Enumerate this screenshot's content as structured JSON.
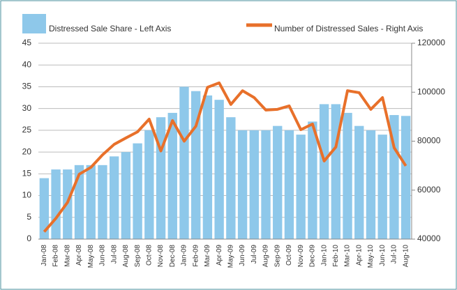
{
  "chart_data": {
    "type": "bar-line",
    "categories": [
      "Jan-08",
      "Feb-08",
      "Mar-08",
      "Apr-08",
      "May-08",
      "Jun-08",
      "Jul-08",
      "Aug-08",
      "Sep-08",
      "Oct-08",
      "Nov-08",
      "Dec-08",
      "Jan-09",
      "Feb-09",
      "Mar-09",
      "Apr-09",
      "May-09",
      "Jun-09",
      "Jul-09",
      "Aug-09",
      "Sep-09",
      "Oct-09",
      "Nov-09",
      "Dec-09",
      "Jan-10",
      "Feb-10",
      "Mar-10",
      "Apr-10",
      "May-10",
      "Jun-10",
      "Jul-10",
      "Aug-10"
    ],
    "series": [
      {
        "name": "Distressed Sale Share - Left Axis",
        "type": "bar",
        "color": "#8ec8ea",
        "values": [
          14,
          16,
          16,
          17,
          17,
          17,
          19,
          20,
          22,
          25,
          28,
          29,
          35,
          34,
          33,
          32,
          28,
          25,
          25,
          25,
          26,
          25,
          24,
          27,
          31,
          31,
          29,
          26,
          25,
          24,
          28.5,
          28.3
        ]
      },
      {
        "name": "Number of Distressed Sales - Right Axis",
        "type": "line",
        "axis": "y2",
        "color": "#e8702a",
        "values": [
          43000,
          48500,
          55000,
          66500,
          69300,
          74400,
          78700,
          81300,
          83800,
          89000,
          76000,
          88400,
          80000,
          86100,
          102000,
          103800,
          95000,
          100600,
          97800,
          92700,
          93000,
          94400,
          84700,
          87000,
          71900,
          77600,
          100600,
          99800,
          93000,
          97800,
          77300,
          69900
        ]
      }
    ],
    "ylim": [
      0,
      45
    ],
    "yticks": [
      0,
      5,
      10,
      15,
      20,
      25,
      30,
      35,
      40,
      45
    ],
    "y2lim": [
      40000,
      120000
    ],
    "y2ticks": [
      40000,
      60000,
      80000,
      100000,
      120000
    ],
    "grid": true
  }
}
